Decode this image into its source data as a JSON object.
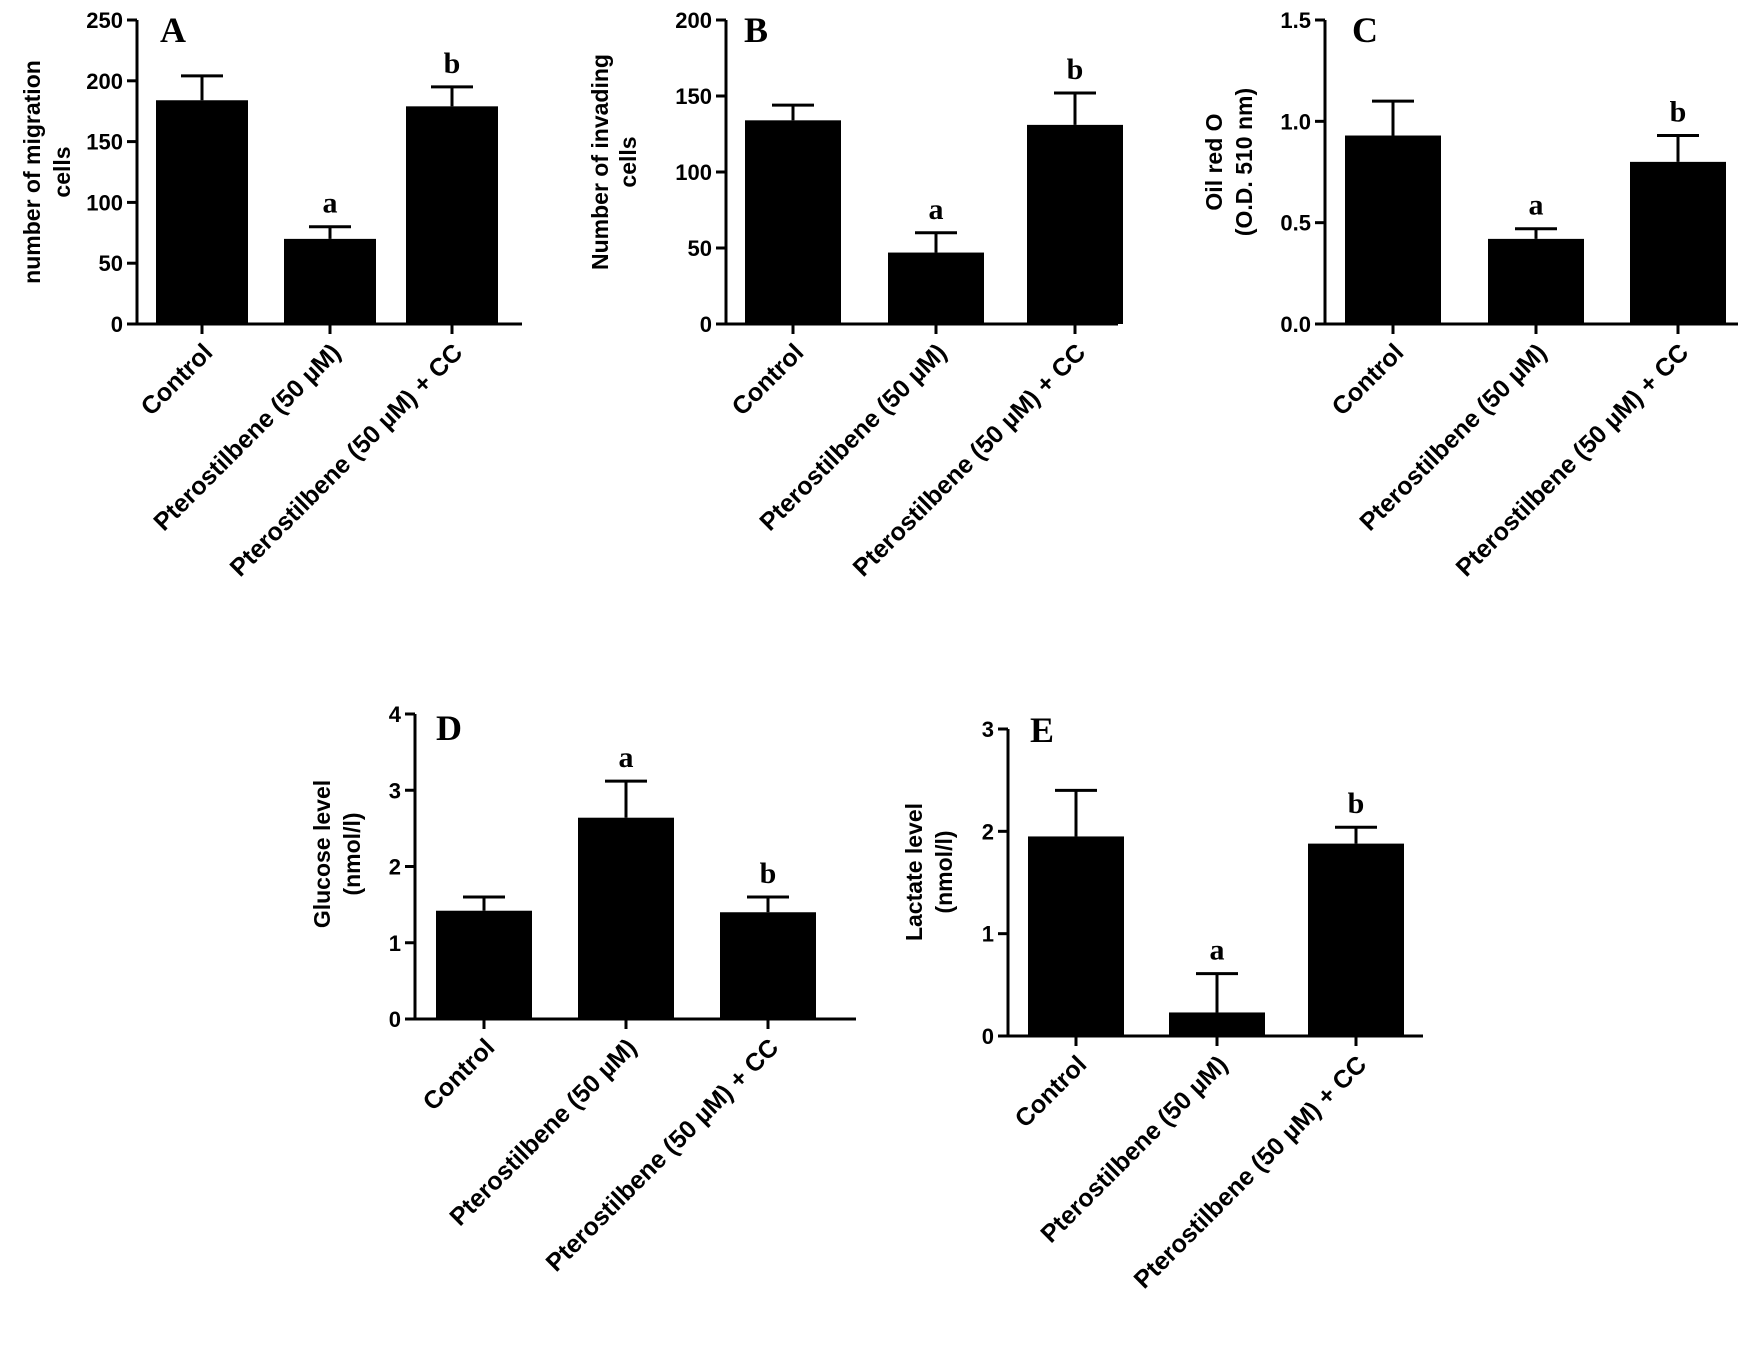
{
  "colors": {
    "bar": "#000000",
    "axis": "#000000",
    "background": "#ffffff"
  },
  "chart_data": [
    {
      "id": "A",
      "type": "bar",
      "panel_label": "A",
      "ylabel_lines": [
        "number of migration",
        "cells"
      ],
      "categories": [
        "Control",
        "Pterostilbene (50 µM)",
        "Pterostilbene (50 µM) + CC"
      ],
      "values": [
        184,
        70,
        179
      ],
      "errors": [
        20,
        10,
        16
      ],
      "significance": [
        "",
        "a",
        "b"
      ],
      "ylim": [
        0,
        250
      ],
      "yticks": [
        0,
        50,
        100,
        150,
        200,
        250
      ],
      "ytick_labels": [
        "0",
        "50",
        "100",
        "150",
        "200",
        "250"
      ],
      "grid": false
    },
    {
      "id": "B",
      "type": "bar",
      "panel_label": "B",
      "ylabel_lines": [
        "Number of invading",
        "cells"
      ],
      "categories": [
        "Control",
        "Pterostilbene (50 µM)",
        "Pterostilbene (50 µM) + CC"
      ],
      "values": [
        134,
        47,
        131
      ],
      "errors": [
        10,
        13,
        21
      ],
      "significance": [
        "",
        "a",
        "b"
      ],
      "ylim": [
        0,
        200
      ],
      "yticks": [
        0,
        50,
        100,
        150,
        200
      ],
      "ytick_labels": [
        "0",
        "50",
        "100",
        "150",
        "200"
      ],
      "grid": false
    },
    {
      "id": "C",
      "type": "bar",
      "panel_label": "C",
      "ylabel_lines": [
        "Oil red O",
        "(O.D. 510 nm)"
      ],
      "categories": [
        "Control",
        "Pterostilbene (50 µM)",
        "Pterostilbene (50 µM) + CC"
      ],
      "values": [
        0.93,
        0.42,
        0.8
      ],
      "errors": [
        0.17,
        0.05,
        0.13
      ],
      "significance": [
        "",
        "a",
        "b"
      ],
      "ylim": [
        0,
        1.5
      ],
      "yticks": [
        0,
        0.5,
        1.0,
        1.5
      ],
      "ytick_labels": [
        "0.0",
        "0.5",
        "1.0",
        "1.5"
      ],
      "grid": false
    },
    {
      "id": "D",
      "type": "bar",
      "panel_label": "D",
      "ylabel_lines": [
        "Glucose level",
        "(nmol/l)"
      ],
      "categories": [
        "Control",
        "Pterostilbene (50 µM)",
        "Pterostilbene (50 µM) + CC"
      ],
      "values": [
        1.42,
        2.64,
        1.4
      ],
      "errors": [
        0.18,
        0.48,
        0.2
      ],
      "significance": [
        "",
        "a",
        "b"
      ],
      "ylim": [
        0,
        4
      ],
      "yticks": [
        0,
        1,
        2,
        3,
        4
      ],
      "ytick_labels": [
        "0",
        "1",
        "2",
        "3",
        "4"
      ],
      "grid": false
    },
    {
      "id": "E",
      "type": "bar",
      "panel_label": "E",
      "ylabel_lines": [
        "Lactate level",
        "(nmol/l)"
      ],
      "categories": [
        "Control",
        "Pterostilbene (50 µM)",
        "Pterostilbene (50 µM) + CC"
      ],
      "values": [
        1.95,
        0.23,
        1.88
      ],
      "errors": [
        0.45,
        0.38,
        0.16
      ],
      "significance": [
        "",
        "a",
        "b"
      ],
      "ylim": [
        0,
        3
      ],
      "yticks": [
        0,
        1,
        2,
        3
      ],
      "ytick_labels": [
        "0",
        "1",
        "2",
        "3"
      ],
      "grid": false
    }
  ]
}
